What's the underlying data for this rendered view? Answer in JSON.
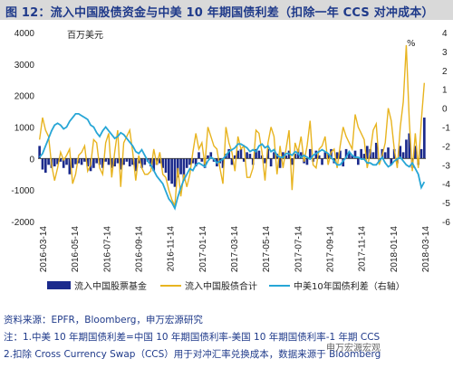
{
  "figure": {
    "title": "图 12：流入中国股债资金与中美 10 年期国债利差（扣除一年 CCS 对冲成本）",
    "unit_left": "百万美元",
    "unit_right": "%"
  },
  "notes": [
    "资料来源：EPFR，Bloomberg，申万宏源研究",
    "注：1.中美 10 年期国债利差=中国 10 年期国债利率-美国 10 年期国债利率-1 年期 CCS",
    "2.扣除 Cross Currency Swap（CCS）用于对冲汇率兑换成本，数据来源于 Bloomberg"
  ],
  "watermark": "申万宏源宏观",
  "colors": {
    "bar": "#1b2a8c",
    "bond": "#e8b420",
    "spread": "#27a6d6"
  },
  "chart_data": {
    "type": "bar",
    "title": "",
    "xlabel": "",
    "ylabel": "百万美元",
    "y2label": "%",
    "ylim": [
      -2000,
      4000
    ],
    "y2lim": [
      -6,
      4
    ],
    "grid": false,
    "legend_position": "bottom",
    "x_ticks": [
      "2016-03-14",
      "2016-05-14",
      "2016-07-14",
      "2016-09-14",
      "2016-11-14",
      "2017-01-14",
      "2017-03-14",
      "2017-05-14",
      "2017-07-14",
      "2017-09-14",
      "2017-11-14",
      "2018-01-14",
      "2018-03-14"
    ],
    "series": [
      {
        "name": "流入中国股票基金",
        "type": "bar",
        "axis": "left",
        "values": [
          400,
          -350,
          -450,
          -200,
          -300,
          -250,
          -180,
          -100,
          -300,
          -200,
          -500,
          -300,
          -180,
          -150,
          -200,
          -100,
          -250,
          -400,
          -300,
          -150,
          -200,
          -300,
          -100,
          -200,
          -300,
          -250,
          -150,
          -350,
          -200,
          -100,
          -250,
          -200,
          -400,
          -150,
          -300,
          -200,
          -100,
          -250,
          -400,
          -200,
          -150,
          -300,
          -450,
          -700,
          -800,
          -900,
          -600,
          -500,
          -700,
          -300,
          -200,
          -150,
          -250,
          200,
          -100,
          -300,
          100,
          200,
          -100,
          -250,
          -150,
          -300,
          150,
          300,
          -200,
          100,
          250,
          300,
          -100,
          200,
          150,
          -200,
          300,
          250,
          100,
          -150,
          300,
          -250,
          200,
          150,
          -300,
          200,
          100,
          250,
          -200,
          150,
          300,
          200,
          -150,
          -200,
          300,
          -100,
          250,
          100,
          -200,
          200,
          150,
          300,
          -150,
          200,
          250,
          -250,
          300,
          200,
          100,
          250,
          -200,
          300,
          150,
          400,
          300,
          200,
          500,
          -100,
          300,
          200,
          350,
          -200,
          300,
          -150,
          400,
          200,
          600,
          800,
          -300,
          400,
          -200,
          300,
          1300
        ]
      },
      {
        "name": "流入中国股债合计",
        "type": "line",
        "axis": "left",
        "values": [
          600,
          1300,
          900,
          700,
          -200,
          -700,
          -300,
          200,
          -50,
          100,
          300,
          -800,
          -500,
          100,
          200,
          400,
          -400,
          -200,
          600,
          500,
          -300,
          -500,
          500,
          800,
          -600,
          200,
          900,
          -900,
          500,
          700,
          900,
          200,
          -700,
          100,
          -300,
          -500,
          -500,
          -400,
          300,
          -200,
          200,
          -500,
          -600,
          -1000,
          -1300,
          -1500,
          -300,
          -1200,
          -500,
          -900,
          -500,
          200,
          800,
          300,
          500,
          -200,
          1000,
          700,
          400,
          300,
          -300,
          -800,
          1000,
          500,
          200,
          -400,
          700,
          300,
          400,
          -600,
          -600,
          -300,
          900,
          800,
          200,
          -700,
          500,
          1000,
          700,
          -500,
          400,
          -300,
          300,
          900,
          -1000,
          500,
          200,
          700,
          -100,
          400,
          1200,
          -200,
          -300,
          300,
          400,
          700,
          -200,
          200,
          300,
          -300,
          400,
          1000,
          700,
          500,
          300,
          1400,
          1000,
          800,
          600,
          -300,
          200,
          900,
          1100,
          -200,
          100,
          500,
          1600,
          1200,
          300,
          -300,
          1000,
          1800,
          3600,
          1200,
          -400,
          800,
          -300,
          1200,
          2400
        ]
      },
      {
        "name": "中美10年国债利差（右轴）",
        "type": "line",
        "axis": "right",
        "values": [
          -2.6,
          -2.4,
          -2.0,
          -1.6,
          -1.2,
          -0.9,
          -0.8,
          -0.9,
          -1.1,
          -1.0,
          -0.7,
          -0.5,
          -0.3,
          -0.3,
          -0.4,
          -0.5,
          -0.6,
          -0.9,
          -1.0,
          -1.3,
          -1.5,
          -1.2,
          -1.0,
          -1.2,
          -1.4,
          -1.6,
          -1.5,
          -1.3,
          -1.4,
          -1.6,
          -1.8,
          -2.0,
          -2.3,
          -2.4,
          -2.2,
          -2.5,
          -2.8,
          -3.0,
          -3.3,
          -3.6,
          -3.8,
          -4.0,
          -4.4,
          -4.8,
          -5.0,
          -5.3,
          -4.7,
          -4.2,
          -3.8,
          -3.5,
          -3.2,
          -3.3,
          -3.0,
          -2.9,
          -3.0,
          -3.1,
          -2.8,
          -2.6,
          -2.7,
          -2.9,
          -2.8,
          -2.7,
          -2.5,
          -2.3,
          -2.2,
          -2.1,
          -1.9,
          -1.9,
          -2.0,
          -2.1,
          -2.3,
          -2.2,
          -2.3,
          -2.0,
          -1.9,
          -2.1,
          -2.0,
          -2.3,
          -2.2,
          -2.5,
          -2.6,
          -2.6,
          -2.4,
          -2.4,
          -2.5,
          -2.3,
          -2.4,
          -2.6,
          -2.5,
          -2.6,
          -2.7,
          -2.5,
          -2.4,
          -2.3,
          -2.2,
          -2.3,
          -2.4,
          -2.6,
          -2.8,
          -3.0,
          -3.0,
          -2.8,
          -2.6,
          -2.3,
          -2.5,
          -2.6,
          -2.6,
          -2.7,
          -2.7,
          -2.9,
          -2.9,
          -3.0,
          -3.0,
          -2.8,
          -2.6,
          -2.9,
          -3.1,
          -3.0,
          -2.8,
          -2.7,
          -2.6,
          -2.8,
          -3.0,
          -3.1,
          -2.9,
          -3.2,
          -3.5,
          -4.2,
          -3.9
        ]
      }
    ]
  }
}
